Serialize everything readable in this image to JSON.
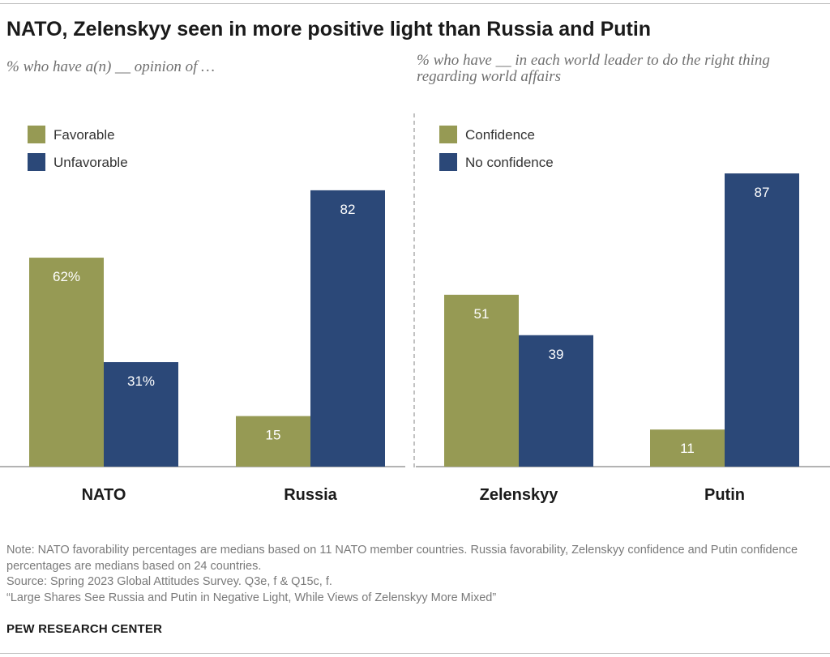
{
  "title": "NATO, Zelenskyy seen in more positive light than Russia and Putin",
  "colors": {
    "green": "#969a54",
    "blue": "#2b4878",
    "axis": "#9a9a9a",
    "divider": "#9a9a9a"
  },
  "chart_data": [
    {
      "type": "bar",
      "subtitle": "% who have a(n) __ opinion of …",
      "categories": [
        "NATO",
        "Russia"
      ],
      "legend": [
        "Favorable",
        "Unfavorable"
      ],
      "legend_position": "top-left",
      "series": [
        {
          "name": "Favorable",
          "values": [
            62,
            15
          ],
          "labels": [
            "62%",
            "15"
          ]
        },
        {
          "name": "Unfavorable",
          "values": [
            31,
            82
          ],
          "labels": [
            "31%",
            "82"
          ]
        }
      ],
      "ylim": [
        0,
        100
      ]
    },
    {
      "type": "bar",
      "subtitle": "% who have __ in each world leader to do the right thing regarding world affairs",
      "categories": [
        "Zelenskyy",
        "Putin"
      ],
      "legend": [
        "Confidence",
        "No confidence"
      ],
      "legend_position": "top-left",
      "series": [
        {
          "name": "Confidence",
          "values": [
            51,
            11
          ],
          "labels": [
            "51",
            "11"
          ]
        },
        {
          "name": "No confidence",
          "values": [
            39,
            87
          ],
          "labels": [
            "39",
            "87"
          ]
        }
      ],
      "ylim": [
        0,
        100
      ]
    }
  ],
  "notes": {
    "note": "Note: NATO favorability percentages are medians based on 11 NATO member countries. Russia favorability, Zelenskyy confidence and Putin confidence percentages are medians based on 24 countries.",
    "source": "Source: Spring 2023 Global Attitudes Survey. Q3e, f & Q15c, f.",
    "report": "“Large Shares See Russia and Putin in Negative Light, While Views of Zelenskyy More Mixed”"
  },
  "brand": "PEW RESEARCH CENTER"
}
